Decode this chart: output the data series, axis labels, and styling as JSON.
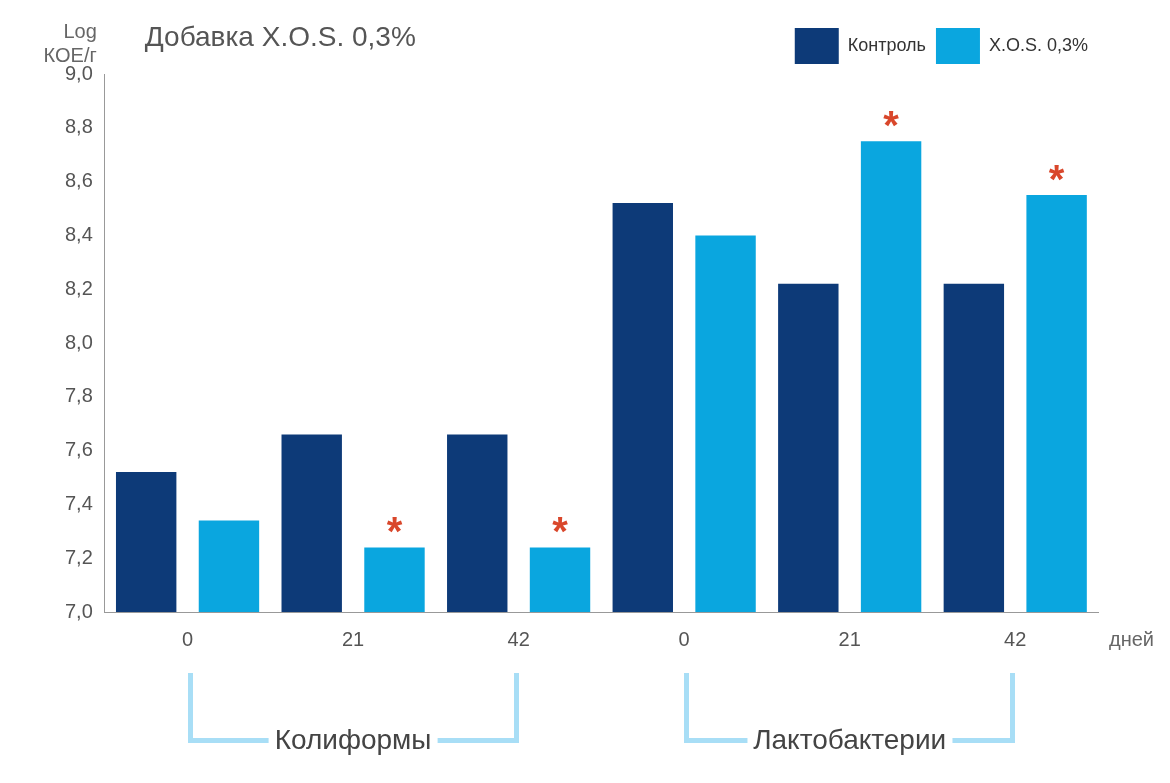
{
  "chart_data": {
    "type": "bar",
    "title": "Добавка X.O.S. 0,3%",
    "ylabel": "Log КОЕ/г",
    "xlabel": "дней",
    "categories": [
      "0",
      "21",
      "42",
      "0",
      "21",
      "42"
    ],
    "series": [
      {
        "name": "Контроль",
        "color": "#0d3a78",
        "values": [
          7.52,
          7.66,
          7.66,
          8.52,
          8.22,
          8.22
        ]
      },
      {
        "name": "X.O.S. 0,3%",
        "color": "#0aa6df",
        "values": [
          7.34,
          7.24,
          7.24,
          8.4,
          8.75,
          8.55
        ],
        "value_labels": [
          null,
          "*",
          "*",
          null,
          "*",
          "*"
        ]
      }
    ],
    "annotations": [
      "Колиформы",
      "Лактобактерии"
    ],
    "ylim": [
      7.0,
      9.0
    ],
    "yticks": [
      {
        "value": 7.0,
        "label": "7,0"
      },
      {
        "value": 7.2,
        "label": "7,2"
      },
      {
        "value": 7.4,
        "label": "7,4"
      },
      {
        "value": 7.6,
        "label": "7,6"
      },
      {
        "value": 7.8,
        "label": "7,8"
      },
      {
        "value": 8.0,
        "label": "8,0"
      },
      {
        "value": 8.2,
        "label": "8,2"
      },
      {
        "value": 8.4,
        "label": "8,4"
      },
      {
        "value": 8.6,
        "label": "8,6"
      },
      {
        "value": 8.8,
        "label": "8,8"
      },
      {
        "value": 9.0,
        "label": "9,0"
      }
    ],
    "grid": false,
    "legend": "top right"
  }
}
